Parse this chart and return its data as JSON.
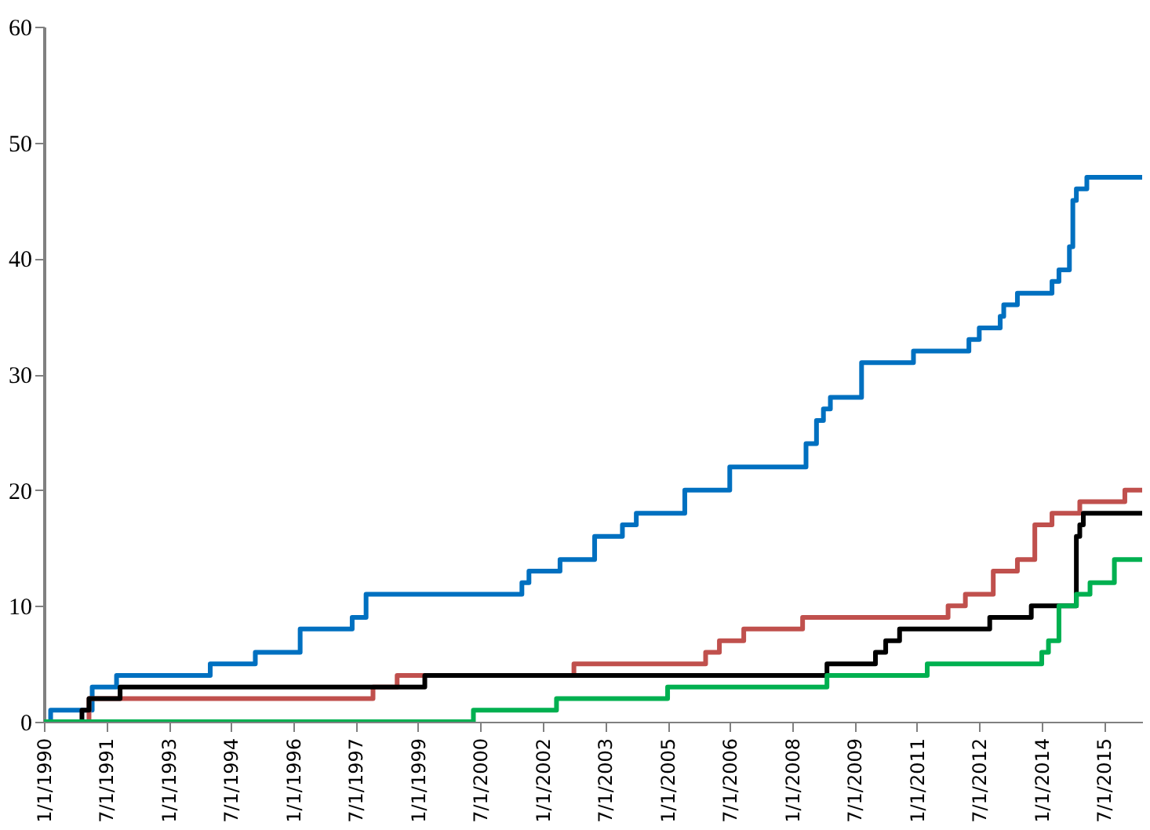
{
  "chart_data": {
    "type": "step",
    "xlim": [
      "1990-01-01",
      "2016-06-01"
    ],
    "ylim": [
      0,
      60
    ],
    "yticks": [
      0,
      10,
      20,
      30,
      40,
      50,
      60
    ],
    "xticks": [
      {
        "value": "1990-01-01",
        "label": "1/1/1990"
      },
      {
        "value": "1991-07-01",
        "label": "7/1/1991"
      },
      {
        "value": "1993-01-01",
        "label": "1/1/1993"
      },
      {
        "value": "1994-07-01",
        "label": "7/1/1994"
      },
      {
        "value": "1996-01-01",
        "label": "1/1/1996"
      },
      {
        "value": "1997-07-01",
        "label": "7/1/1997"
      },
      {
        "value": "1999-01-01",
        "label": "1/1/1999"
      },
      {
        "value": "2000-07-01",
        "label": "7/1/2000"
      },
      {
        "value": "2002-01-01",
        "label": "1/1/2002"
      },
      {
        "value": "2003-07-01",
        "label": "7/1/2003"
      },
      {
        "value": "2005-01-01",
        "label": "1/1/2005"
      },
      {
        "value": "2006-07-01",
        "label": "7/1/2006"
      },
      {
        "value": "2008-01-01",
        "label": "1/1/2008"
      },
      {
        "value": "2009-07-01",
        "label": "7/1/2009"
      },
      {
        "value": "2011-01-01",
        "label": "1/1/2011"
      },
      {
        "value": "2012-07-01",
        "label": "7/1/2012"
      },
      {
        "value": "2014-01-01",
        "label": "1/1/2014"
      },
      {
        "value": "2015-07-01",
        "label": "7/1/2015"
      }
    ],
    "grid": false,
    "line_style": "solid",
    "series": [
      {
        "color": "#0070c0",
        "x": [
          "1990-01",
          "1990-03",
          "1991-03",
          "1991-10",
          "1994-01",
          "1995-02",
          "1996-03",
          "1997-06",
          "1997-10",
          "2001-07",
          "2001-09",
          "2002-06",
          "2003-04",
          "2003-12",
          "2004-04",
          "2005-06",
          "2006-07",
          "2008-05",
          "2008-08",
          "2008-10",
          "2008-12",
          "2009-09",
          "2010-12",
          "2012-04",
          "2012-07",
          "2013-01",
          "2013-02",
          "2013-06",
          "2014-04",
          "2014-06",
          "2014-09",
          "2014-10",
          "2014-11",
          "2015-02",
          "2016-06"
        ],
        "values": [
          0,
          1,
          3,
          4,
          5,
          6,
          8,
          9,
          11,
          12,
          13,
          14,
          16,
          17,
          18,
          20,
          22,
          24,
          26,
          27,
          28,
          31,
          32,
          33,
          34,
          35,
          36,
          37,
          38,
          39,
          41,
          45,
          46,
          47,
          47
        ]
      },
      {
        "color": "#c0504d",
        "x": [
          "1990-01",
          "1991-02",
          "1997-12",
          "1998-07",
          "2002-10",
          "2005-12",
          "2006-04",
          "2006-11",
          "2008-04",
          "2011-10",
          "2012-03",
          "2012-11",
          "2013-06",
          "2013-11",
          "2014-04",
          "2014-12",
          "2016-01",
          "2016-06"
        ],
        "values": [
          0,
          2,
          3,
          4,
          5,
          6,
          7,
          8,
          9,
          10,
          11,
          13,
          14,
          17,
          18,
          19,
          20,
          20
        ]
      },
      {
        "color": "#000000",
        "x": [
          "1990-01",
          "1990-12",
          "1991-02",
          "1991-11",
          "1999-03",
          "2008-11",
          "2010-01",
          "2010-04",
          "2010-08",
          "2012-10",
          "2013-10",
          "2014-11",
          "2014-12",
          "2015-01",
          "2016-06"
        ],
        "values": [
          0,
          1,
          2,
          3,
          4,
          5,
          6,
          7,
          8,
          9,
          10,
          16,
          17,
          18,
          18
        ]
      },
      {
        "color": "#00b050",
        "x": [
          "1990-01",
          "2000-05",
          "2002-05",
          "2005-01",
          "2008-11",
          "2011-04",
          "2014-01",
          "2014-03",
          "2014-06",
          "2014-11",
          "2015-03",
          "2015-10",
          "2016-06"
        ],
        "values": [
          0,
          1,
          2,
          3,
          4,
          5,
          6,
          7,
          10,
          11,
          12,
          14,
          14
        ]
      }
    ]
  }
}
